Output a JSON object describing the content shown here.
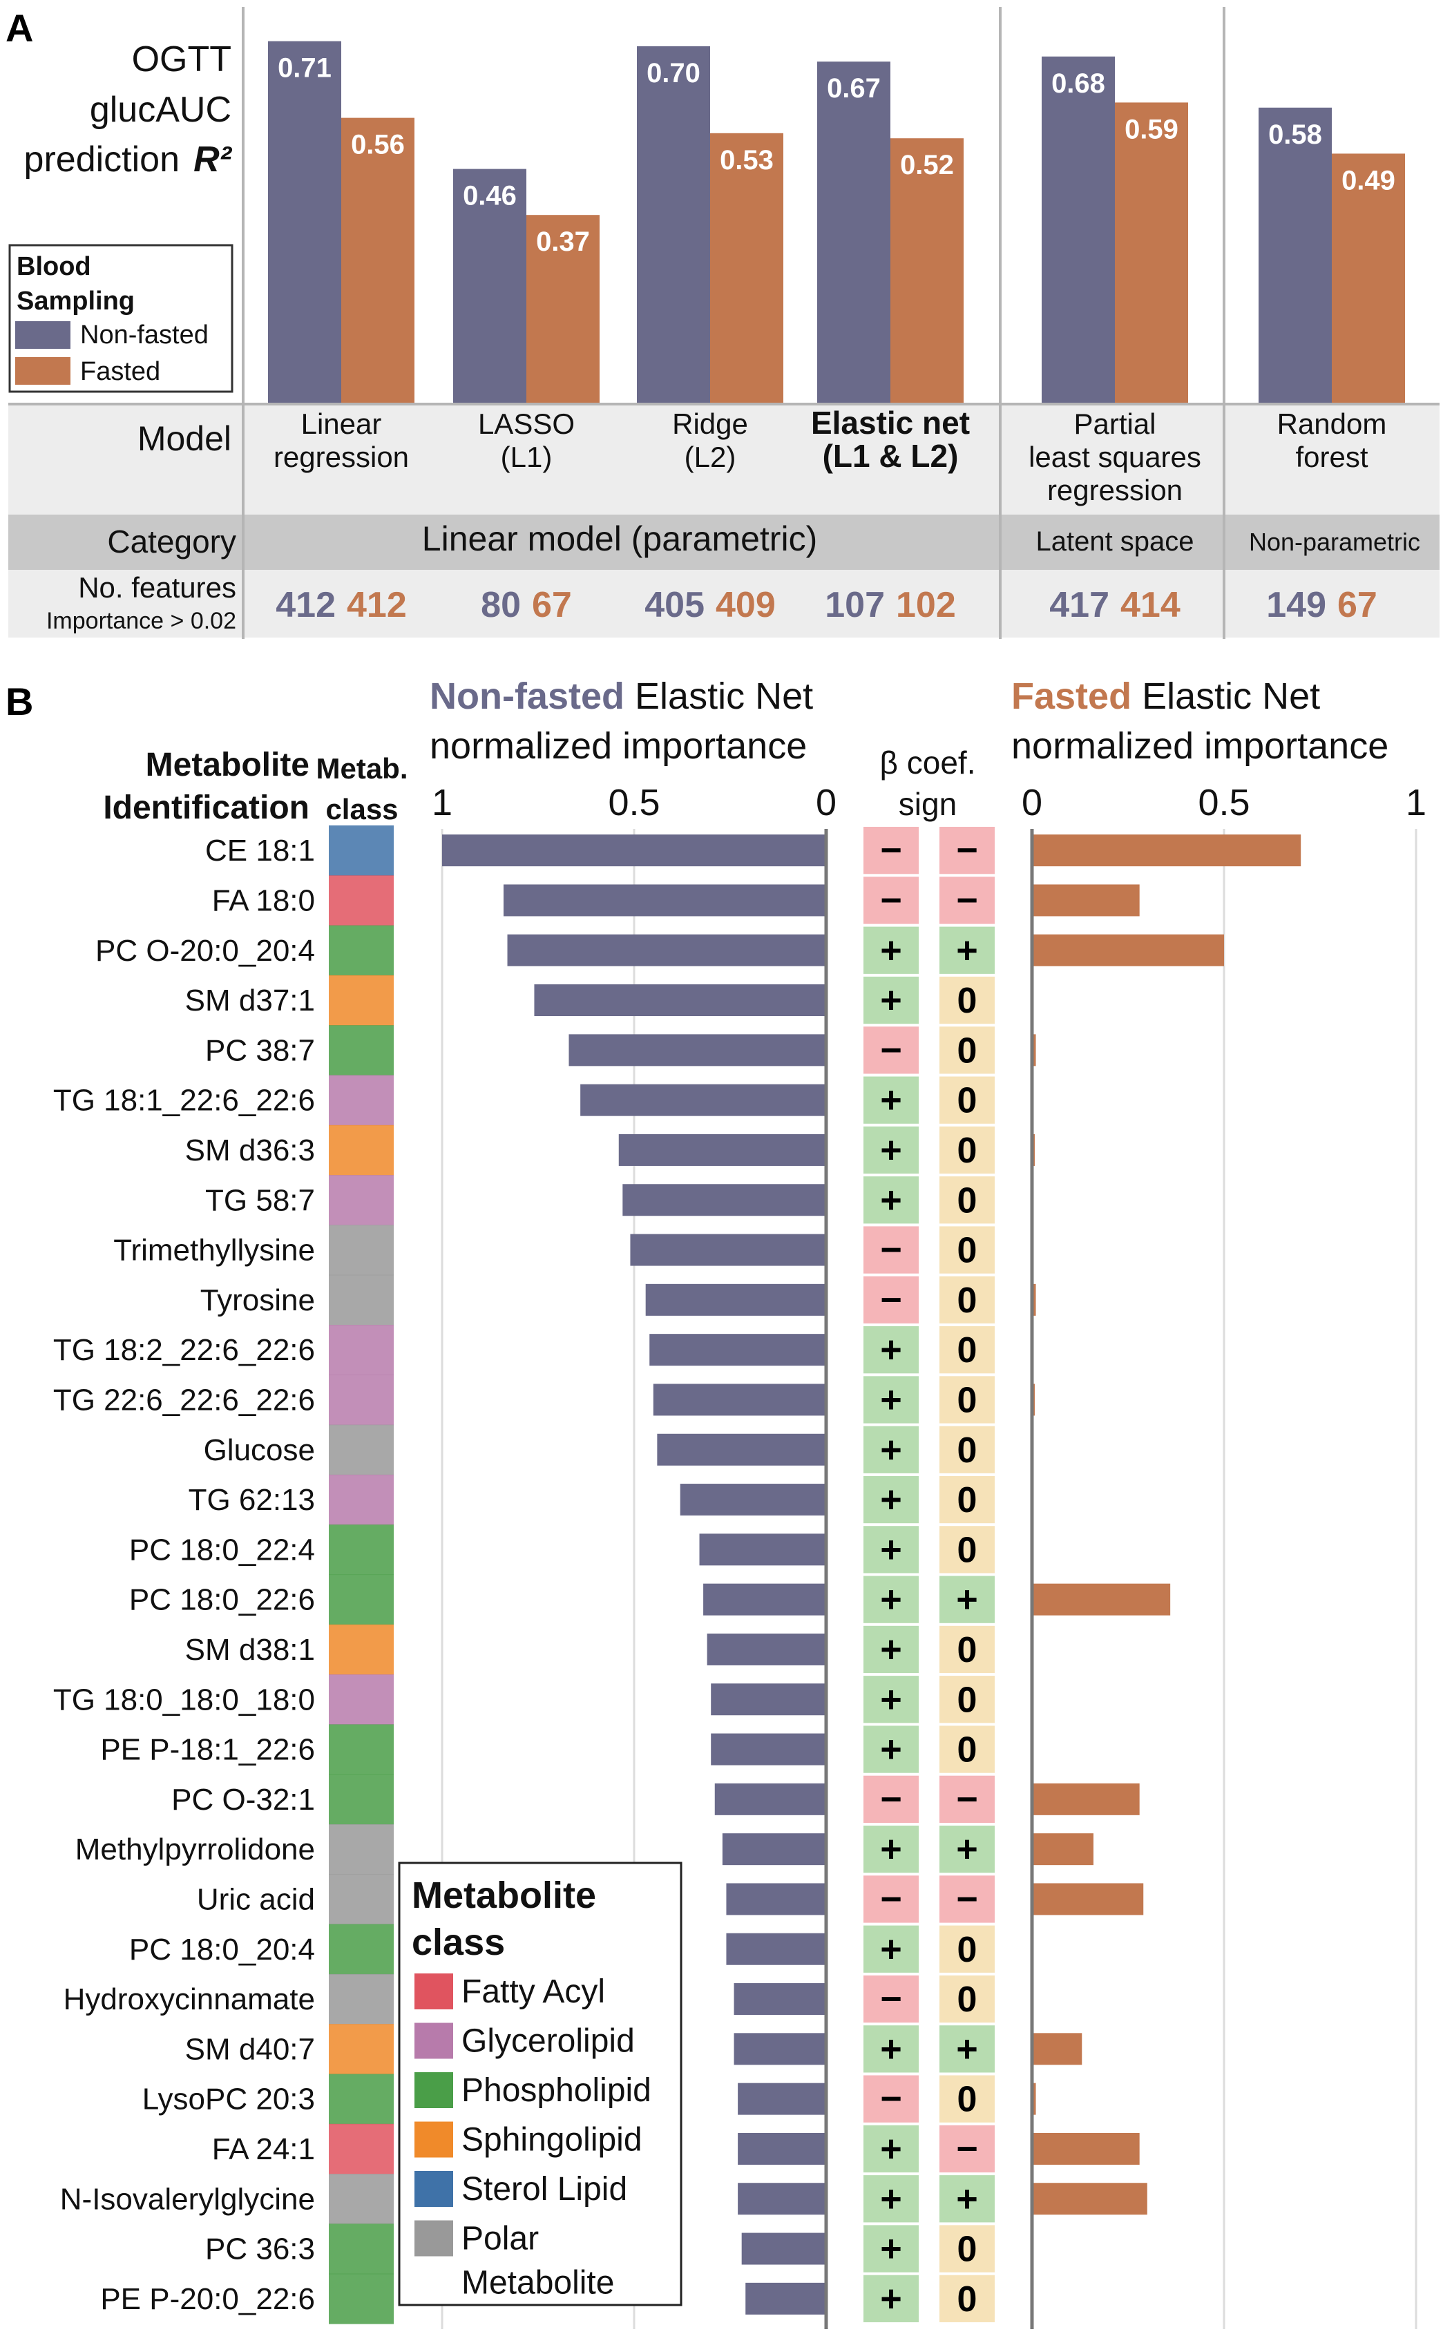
{
  "panel_a": {
    "label": "A",
    "ylabel_lines": [
      "OGTT",
      "glucAUC",
      "prediction"
    ],
    "ylabel_r2": "R²",
    "legend": {
      "title_lines": [
        "Blood",
        "Sampling"
      ],
      "items": [
        {
          "label": "Non-fasted",
          "color": "#6a6a8a"
        },
        {
          "label": "Fasted",
          "color": "#c2784f"
        }
      ]
    },
    "table": {
      "model_header": "Model",
      "category_header": "Category",
      "features_header": "No. features",
      "features_subheader": "Importance > 0.02",
      "categories": [
        "Linear model (parametric)",
        "Latent space",
        "Non-parametric"
      ]
    }
  },
  "panel_b": {
    "label": "B",
    "metabolite_header_lines": [
      "Metabolite",
      "Identification"
    ],
    "class_header_lines": [
      "Metab.",
      "class"
    ],
    "nonfasted_title_colored": "Non-fasted",
    "fasted_title_colored": "Fasted",
    "importance_title_rest": "Elastic Net",
    "importance_title_line2": "normalized importance",
    "sign_header_lines": [
      "β coef.",
      "sign"
    ],
    "nonfasted_axis_ticks": [
      "1",
      "0.5",
      "0"
    ],
    "fasted_axis_ticks": [
      "0",
      "0.5",
      "1"
    ],
    "legend": {
      "title_lines": [
        "Metabolite",
        "class"
      ],
      "items": [
        {
          "label_lines": [
            "Fatty Acyl"
          ],
          "color": "#e0545f"
        },
        {
          "label_lines": [
            "Glycerolipid"
          ],
          "color": "#b77bab"
        },
        {
          "label_lines": [
            "Phospholipid"
          ],
          "color": "#4a9e48"
        },
        {
          "label_lines": [
            "Sphingolipid"
          ],
          "color": "#f08a2a"
        },
        {
          "label_lines": [
            "Sterol Lipid"
          ],
          "color": "#3f72a8"
        },
        {
          "label_lines": [
            "Polar",
            "Metabolite"
          ],
          "color": "#999999"
        }
      ]
    }
  },
  "chart_data": [
    {
      "type": "bar",
      "title": "",
      "ylabel": "OGTT glucAUC prediction R²",
      "categories": [
        "Linear regression",
        "LASSO (L1)",
        "Ridge (L2)",
        "Elastic net (L1 & L2)",
        "Partial least squares regression",
        "Random forest"
      ],
      "category_label_lines": [
        [
          "Linear",
          "regression"
        ],
        [
          "LASSO",
          "(L1)"
        ],
        [
          "Ridge",
          "(L2)"
        ],
        [
          "Elastic net",
          "(L1 & L2)"
        ],
        [
          "Partial",
          "least squares",
          "regression"
        ],
        [
          "Random",
          "forest"
        ]
      ],
      "series": [
        {
          "name": "Non-fasted",
          "color": "#6a6a8a",
          "values": [
            0.71,
            0.46,
            0.7,
            0.67,
            0.68,
            0.58
          ]
        },
        {
          "name": "Fasted",
          "color": "#c2784f",
          "values": [
            0.56,
            0.37,
            0.53,
            0.52,
            0.59,
            0.49
          ]
        }
      ],
      "value_labels": {
        "Non-fasted": [
          "0.71",
          "0.46",
          "0.70",
          "0.67",
          "0.68",
          "0.58"
        ],
        "Fasted": [
          "0.56",
          "0.37",
          "0.53",
          "0.52",
          "0.59",
          "0.49"
        ]
      },
      "category_groups": [
        "Linear model (parametric)",
        "Linear model (parametric)",
        "Linear model (parametric)",
        "Linear model (parametric)",
        "Latent space",
        "Non-parametric"
      ],
      "no_features": {
        "Non-fasted": [
          412,
          80,
          405,
          107,
          417,
          149
        ],
        "Fasted": [
          412,
          67,
          409,
          102,
          414,
          67
        ]
      },
      "highlighted_model": "Elastic net (L1 & L2)",
      "ylim": [
        0,
        0.75
      ],
      "legend_position": "left",
      "grid": false
    },
    {
      "type": "bar",
      "orientation": "horizontal",
      "title": "Elastic Net normalized importance",
      "categories": [
        "CE 18:1",
        "FA 18:0",
        "PC O-20:0_20:4",
        "SM d37:1",
        "PC 38:7",
        "TG 18:1_22:6_22:6",
        "SM d36:3",
        "TG 58:7",
        "Trimethyllysine",
        "Tyrosine",
        "TG 18:2_22:6_22:6",
        "TG 22:6_22:6_22:6",
        "Glucose",
        "TG 62:13",
        "PC 18:0_22:4",
        "PC 18:0_22:6",
        "SM d38:1",
        "TG 18:0_18:0_18:0",
        "PE P-18:1_22:6",
        "PC O-32:1",
        "Methylpyrrolidone",
        "Uric acid",
        "PC 18:0_20:4",
        "Hydroxycinnamate",
        "SM d40:7",
        "LysoPC 20:3",
        "FA 24:1",
        "N-Isovalerylglycine",
        "PC 36:3",
        "PE P-20:0_22:6"
      ],
      "metabolite_class": [
        "Sterol Lipid",
        "Fatty Acyl",
        "Phospholipid",
        "Sphingolipid",
        "Phospholipid",
        "Glycerolipid",
        "Sphingolipid",
        "Glycerolipid",
        "Polar Metabolite",
        "Polar Metabolite",
        "Glycerolipid",
        "Glycerolipid",
        "Polar Metabolite",
        "Glycerolipid",
        "Phospholipid",
        "Phospholipid",
        "Sphingolipid",
        "Glycerolipid",
        "Phospholipid",
        "Phospholipid",
        "Polar Metabolite",
        "Polar Metabolite",
        "Phospholipid",
        "Polar Metabolite",
        "Sphingolipid",
        "Phospholipid",
        "Fatty Acyl",
        "Polar Metabolite",
        "Phospholipid",
        "Phospholipid"
      ],
      "series": [
        {
          "name": "Non-fasted",
          "color": "#6a6a8a",
          "values": [
            1.0,
            0.84,
            0.83,
            0.76,
            0.67,
            0.64,
            0.54,
            0.53,
            0.51,
            0.47,
            0.46,
            0.45,
            0.44,
            0.38,
            0.33,
            0.32,
            0.31,
            0.3,
            0.3,
            0.29,
            0.27,
            0.26,
            0.26,
            0.24,
            0.24,
            0.23,
            0.23,
            0.23,
            0.22,
            0.21
          ]
        },
        {
          "name": "Fasted",
          "color": "#c2784f",
          "values": [
            0.7,
            0.28,
            0.5,
            0.0,
            0.01,
            0.0,
            0.005,
            0.0,
            0.0,
            0.01,
            0.0,
            0.005,
            0.0,
            0.0,
            0.0,
            0.36,
            0.0,
            0.0,
            0.0,
            0.28,
            0.16,
            0.29,
            0.0,
            0.0,
            0.13,
            0.01,
            0.28,
            0.3,
            0.0,
            0.0
          ]
        }
      ],
      "beta_coef_sign": {
        "Non-fasted": [
          "−",
          "−",
          "+",
          "+",
          "−",
          "+",
          "+",
          "+",
          "−",
          "−",
          "+",
          "+",
          "+",
          "+",
          "+",
          "+",
          "+",
          "+",
          "+",
          "−",
          "+",
          "−",
          "+",
          "−",
          "+",
          "−",
          "+",
          "+",
          "+",
          "+"
        ],
        "Fasted": [
          "−",
          "−",
          "+",
          "0",
          "0",
          "0",
          "0",
          "0",
          "0",
          "0",
          "0",
          "0",
          "0",
          "0",
          "0",
          "+",
          "0",
          "0",
          "0",
          "−",
          "+",
          "−",
          "0",
          "0",
          "+",
          "0",
          "−",
          "+",
          "0",
          "0"
        ]
      },
      "xlim": [
        0,
        1
      ],
      "grid": true
    }
  ],
  "colors": {
    "nonfasted": "#6a6a8a",
    "fasted": "#c2784f",
    "table_gray": "#ededed",
    "table_dark": "#c8c8c8",
    "sign_positive": "#b7dcb0",
    "sign_negative": "#f5b5b8",
    "sign_zero": "#f6e2b8"
  }
}
